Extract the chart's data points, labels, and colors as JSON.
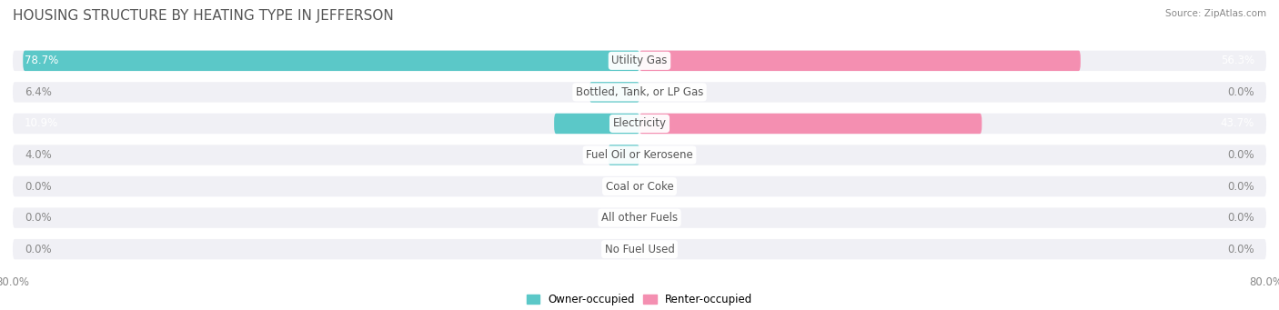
{
  "title": "HOUSING STRUCTURE BY HEATING TYPE IN JEFFERSON",
  "source": "Source: ZipAtlas.com",
  "categories": [
    "Utility Gas",
    "Bottled, Tank, or LP Gas",
    "Electricity",
    "Fuel Oil or Kerosene",
    "Coal or Coke",
    "All other Fuels",
    "No Fuel Used"
  ],
  "owner_values": [
    78.7,
    6.4,
    10.9,
    4.0,
    0.0,
    0.0,
    0.0
  ],
  "renter_values": [
    56.3,
    0.0,
    43.7,
    0.0,
    0.0,
    0.0,
    0.0
  ],
  "owner_color": "#5BC8C8",
  "renter_color": "#F48FB1",
  "bar_bg_color": "#F0F0F5",
  "xlim": 80.0,
  "figsize": [
    14.06,
    3.41
  ],
  "dpi": 100,
  "title_fontsize": 11,
  "label_fontsize": 8.5,
  "axis_label_fontsize": 8.5,
  "value_fontsize": 8.5,
  "category_fontsize": 8.5,
  "bar_height": 0.65,
  "bar_spacing": 1.0,
  "background_color": "#FFFFFF"
}
